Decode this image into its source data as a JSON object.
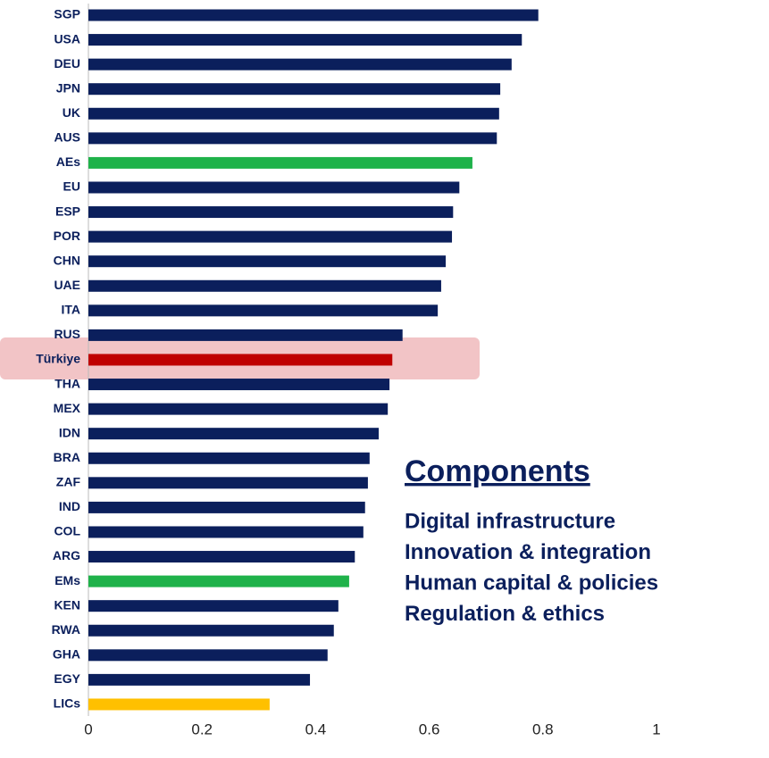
{
  "chart_data": {
    "type": "barh",
    "categories": [
      "SGP",
      "USA",
      "DEU",
      "JPN",
      "UK",
      "AUS",
      "AEs",
      "EU",
      "ESP",
      "POR",
      "CHN",
      "UAE",
      "ITA",
      "RUS",
      "Türkiye",
      "THA",
      "MEX",
      "IDN",
      "BRA",
      "ZAF",
      "IND",
      "COL",
      "ARG",
      "EMs",
      "KEN",
      "RWA",
      "GHA",
      "EGY",
      "LICs"
    ],
    "values": [
      0.792,
      0.763,
      0.745,
      0.725,
      0.723,
      0.719,
      0.676,
      0.653,
      0.642,
      0.64,
      0.629,
      0.621,
      0.615,
      0.553,
      0.535,
      0.53,
      0.527,
      0.511,
      0.495,
      0.492,
      0.487,
      0.484,
      0.469,
      0.459,
      0.44,
      0.432,
      0.421,
      0.39,
      0.319
    ],
    "colors": [
      "#0b1f5c",
      "#0b1f5c",
      "#0b1f5c",
      "#0b1f5c",
      "#0b1f5c",
      "#0b1f5c",
      "#1fb24a",
      "#0b1f5c",
      "#0b1f5c",
      "#0b1f5c",
      "#0b1f5c",
      "#0b1f5c",
      "#0b1f5c",
      "#0b1f5c",
      "#c00000",
      "#0b1f5c",
      "#0b1f5c",
      "#0b1f5c",
      "#0b1f5c",
      "#0b1f5c",
      "#0b1f5c",
      "#0b1f5c",
      "#0b1f5c",
      "#1fb24a",
      "#0b1f5c",
      "#0b1f5c",
      "#0b1f5c",
      "#0b1f5c",
      "#ffc000"
    ],
    "xlim": [
      0,
      1
    ],
    "xticks": [
      0,
      0.2,
      0.4,
      0.6,
      0.8,
      1
    ],
    "grid": false
  },
  "components": {
    "title": "Components",
    "items": [
      "Digital infrastructure",
      "Innovation & integration",
      "Human capital & policies",
      "Regulation & ethics"
    ]
  }
}
